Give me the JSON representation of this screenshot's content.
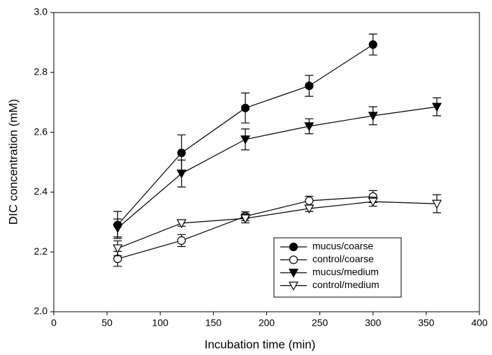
{
  "chart_data": {
    "type": "line",
    "x_label": "Incubation time (min)",
    "y_label": "DIC concentration (mM)",
    "xlim": [
      0,
      400
    ],
    "xticks": [
      0,
      50,
      100,
      150,
      200,
      250,
      300,
      350,
      400
    ],
    "ylim": [
      2,
      3
    ],
    "yticks": [
      {
        "value": 2,
        "label": "2.0"
      },
      2.2,
      2.4,
      2.6,
      2.8,
      {
        "value": 3,
        "label": "3.0"
      }
    ],
    "grid": false,
    "legend_position": "lower-right",
    "series": [
      {
        "name": "mucus/coarse",
        "color": "#000000",
        "marker": "circle",
        "filled": true,
        "x": [
          60,
          120,
          180,
          240,
          300
        ],
        "values": [
          2.29,
          2.531,
          2.681,
          2.755,
          2.893
        ],
        "errors": [
          0.045,
          0.06,
          0.05,
          0.035,
          0.035
        ]
      },
      {
        "name": "control/coarse",
        "color": "#000000",
        "marker": "circle",
        "filled": false,
        "x": [
          60,
          120,
          180,
          240,
          300
        ],
        "values": [
          2.177,
          2.238,
          2.319,
          2.371,
          2.385
        ],
        "errors": [
          0.025,
          0.02,
          0.015,
          0.015,
          0.02
        ]
      },
      {
        "name": "mucus/medium",
        "color": "#000000",
        "marker": "triangle-down",
        "filled": true,
        "x": [
          60,
          120,
          180,
          240,
          300,
          360
        ],
        "values": [
          2.28,
          2.462,
          2.576,
          2.62,
          2.655,
          2.685
        ],
        "errors": [
          0.03,
          0.045,
          0.035,
          0.025,
          0.03,
          0.03
        ]
      },
      {
        "name": "control/medium",
        "color": "#000000",
        "marker": "triangle-down",
        "filled": false,
        "x": [
          60,
          120,
          180,
          240,
          300,
          360
        ],
        "values": [
          2.212,
          2.296,
          2.312,
          2.345,
          2.368,
          2.361
        ],
        "errors": [
          0.025,
          0.01,
          0.015,
          0.01,
          0.015,
          0.03
        ]
      }
    ]
  }
}
